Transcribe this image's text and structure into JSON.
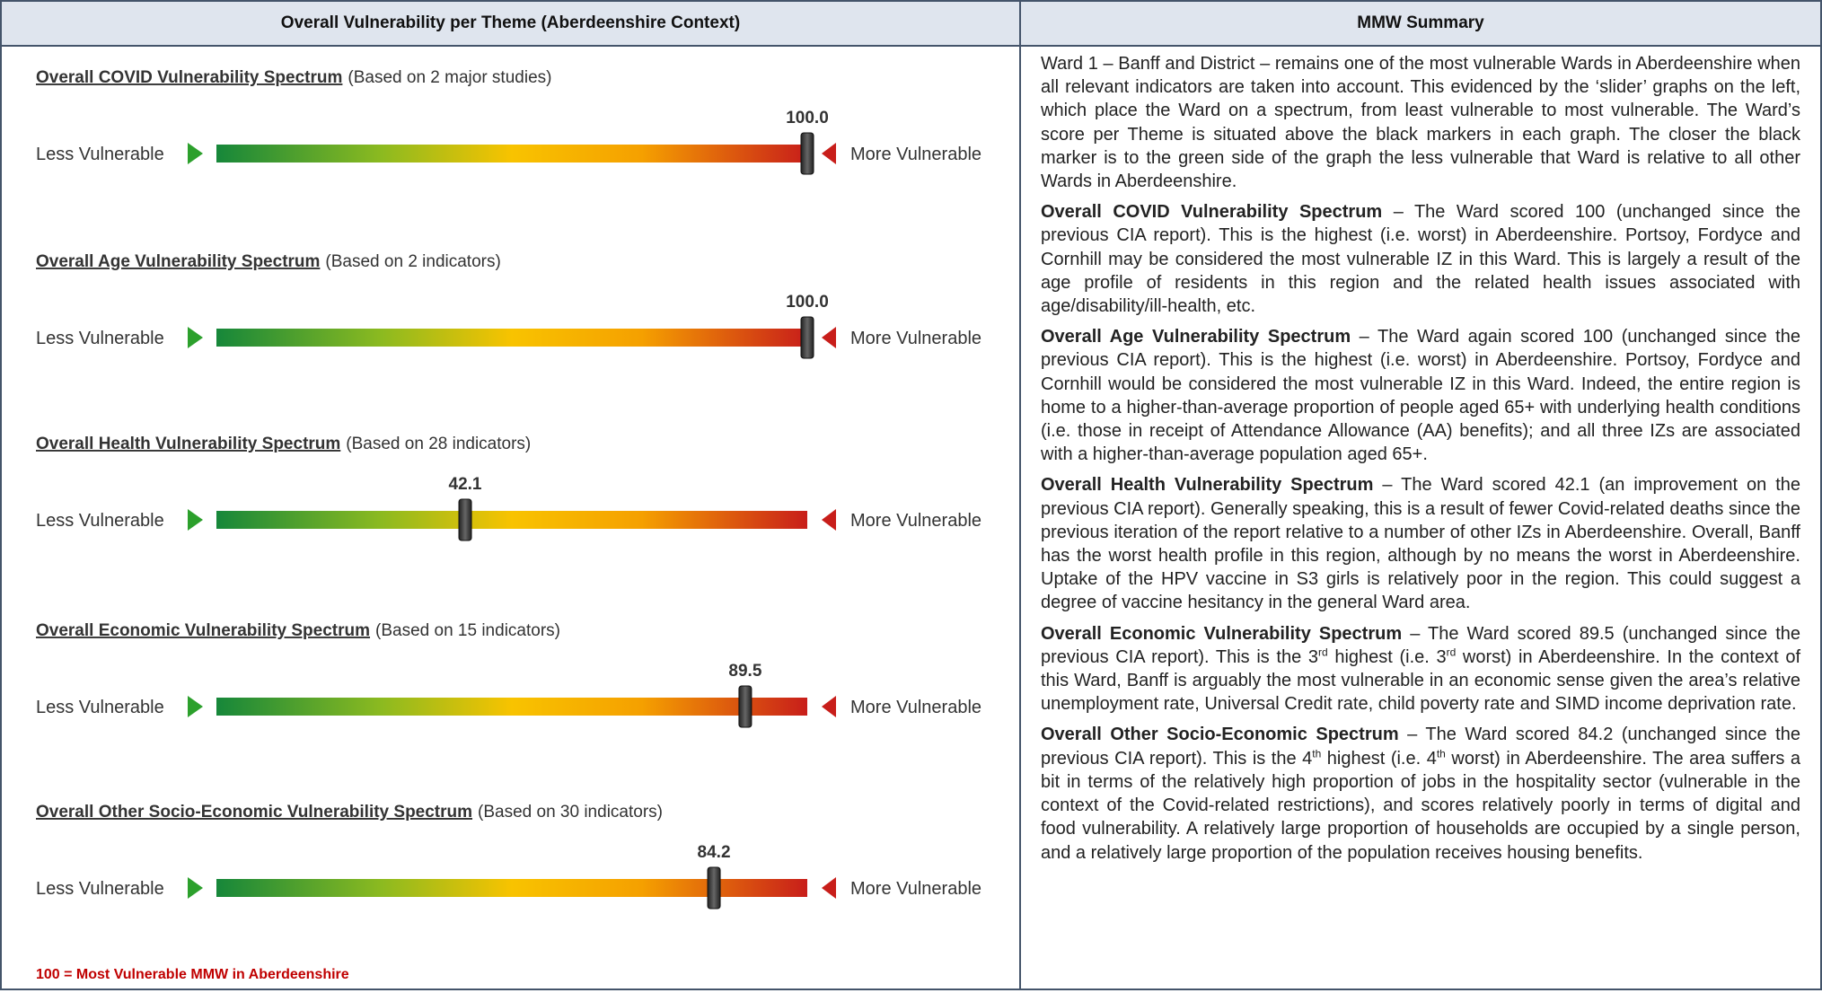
{
  "header": {
    "left": "Overall Vulnerability per Theme (Aberdeenshire Context)",
    "right": "MMW Summary"
  },
  "scale": {
    "xlim": [
      0,
      100
    ],
    "low_label": "Less Vulnerable",
    "high_label": "More Vulnerable"
  },
  "spectrums": [
    {
      "title": "Overall COVID Vulnerability Spectrum",
      "basis": "(Based on 2 major studies)",
      "value": 100,
      "value_label": "100.0"
    },
    {
      "title": "Overall Age Vulnerability Spectrum",
      "basis": "(Based on 2 indicators)",
      "value": 100,
      "value_label": "100.0"
    },
    {
      "title": "Overall Health Vulnerability Spectrum",
      "basis": "(Based on 28 indicators)",
      "value": 42.1,
      "value_label": "42.1"
    },
    {
      "title": "Overall Economic Vulnerability Spectrum",
      "basis": "(Based on 15 indicators)",
      "value": 89.5,
      "value_label": "89.5"
    },
    {
      "title": "Overall Other Socio-Economic Vulnerability Spectrum",
      "basis": "(Based on 30 indicators)",
      "value": 84.2,
      "value_label": "84.2"
    }
  ],
  "note": "100 = Most Vulnerable MMW in Aberdeenshire",
  "summary": {
    "paragraphs": [
      {
        "runs": [
          {
            "text": "Ward 1 – Banff and District – remains one of the most vulnerable Wards in Aberdeenshire when all relevant indicators are taken into account.  This evidenced by the ‘slider’ graphs on the left, which place the Ward on a spectrum, from least vulnerable to most vulnerable.  The Ward’s score per Theme is situated above the black markers in each graph.  The closer the black marker is to the green side of the graph the less vulnerable that Ward is relative to all other Wards in Aberdeenshire."
          }
        ]
      },
      {
        "runs": [
          {
            "text": "Overall COVID Vulnerability Spectrum",
            "style": "bold"
          },
          {
            "text": " – The Ward scored 100 (unchanged since the previous CIA report).  This is the highest (i.e. worst) in Aberdeenshire.  Portsoy, Fordyce and Cornhill may be considered the most vulnerable IZ in this Ward.  This is largely a result of the age profile of residents in this region and the related health issues associated with age/disability/ill-health, etc."
          }
        ]
      },
      {
        "runs": [
          {
            "text": "Overall Age Vulnerability Spectrum",
            "style": "bold"
          },
          {
            "text": " – The Ward again scored 100 (unchanged since the previous CIA report).  This is the highest (i.e. worst) in Aberdeenshire.  Portsoy, Fordyce and Cornhill would be considered the most vulnerable IZ in this Ward.  Indeed, the entire region is home to a higher-than-average proportion of people aged 65+ with underlying health conditions (i.e. those in receipt of Attendance Allowance (AA) benefits); and all three IZs are associated with a higher-than-average population aged 65+."
          }
        ]
      },
      {
        "runs": [
          {
            "text": "Overall Health Vulnerability Spectrum",
            "style": "bold"
          },
          {
            "text": " – The Ward scored 42.1 (an improvement on the previous CIA report).  Generally speaking, this is a result of fewer Covid-related deaths since the previous iteration of the report relative to a number of other IZs in Aberdeenshire.  Overall, Banff has the worst health profile in this region, although by no means the worst in Aberdeenshire.  Uptake of the HPV vaccine in S3 girls is relatively poor in the region.  This could suggest a degree of vaccine hesitancy in the general Ward area."
          }
        ]
      },
      {
        "runs": [
          {
            "text": "Overall Economic Vulnerability Spectrum",
            "style": "bold"
          },
          {
            "text": " – The Ward scored 89.5 (unchanged since the previous CIA report).  This is the 3"
          },
          {
            "text": "rd",
            "style": "sup"
          },
          {
            "text": " highest (i.e. 3"
          },
          {
            "text": "rd",
            "style": "sup"
          },
          {
            "text": " worst) in Aberdeenshire.  In the context of this Ward, Banff is arguably the most vulnerable in an economic sense given the area’s relative unemployment rate, Universal Credit rate, child poverty rate and SIMD income deprivation rate."
          }
        ]
      },
      {
        "runs": [
          {
            "text": "Overall Other Socio-Economic Spectrum",
            "style": "bold"
          },
          {
            "text": " – The Ward scored 84.2 (unchanged since the previous CIA report).  This is the 4"
          },
          {
            "text": "th",
            "style": "sup"
          },
          {
            "text": " highest (i.e. 4"
          },
          {
            "text": "th",
            "style": "sup"
          },
          {
            "text": " worst) in Aberdeenshire.  The area suffers a bit in terms of the relatively high proportion of jobs in the hospitality sector (vulnerable in the context of the Covid-related restrictions), and scores relatively poorly in terms of digital and food vulnerability.  A relatively large proportion of households are occupied by a single person, and a relatively large proportion of the population receives housing benefits."
          }
        ]
      }
    ]
  }
}
